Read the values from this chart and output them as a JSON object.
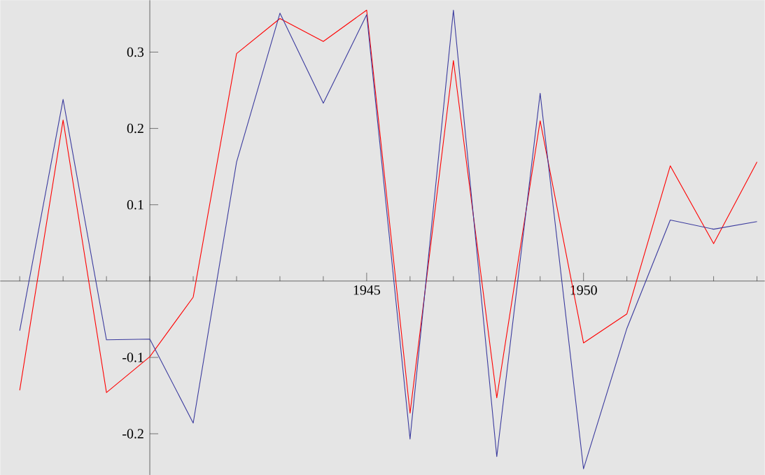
{
  "chart_data": {
    "type": "line",
    "x": [
      1937,
      1938,
      1939,
      1940,
      1941,
      1942,
      1943,
      1944,
      1945,
      1946,
      1947,
      1948,
      1949,
      1950,
      1951,
      1952,
      1953,
      1954
    ],
    "series": [
      {
        "color": "#ff0000",
        "values": [
          -0.143,
          0.211,
          -0.146,
          -0.099,
          -0.021,
          0.298,
          0.344,
          0.314,
          0.355,
          -0.173,
          0.289,
          -0.153,
          0.21,
          -0.081,
          -0.043,
          0.151,
          0.049,
          0.156
        ]
      },
      {
        "color": "#3b3b9e",
        "values": [
          -0.065,
          0.238,
          -0.077,
          -0.076,
          -0.186,
          0.156,
          0.351,
          0.233,
          0.349,
          -0.207,
          0.355,
          -0.23,
          0.246,
          -0.246,
          -0.062,
          0.08,
          0.068,
          0.078
        ]
      }
    ],
    "xlim": [
      1936.55,
      1954.18
    ],
    "ylim": [
      -0.254,
      0.368
    ],
    "xticks": [
      {
        "value": 1937,
        "label": null
      },
      {
        "value": 1938,
        "label": null
      },
      {
        "value": 1939,
        "label": null
      },
      {
        "value": 1940,
        "label": null
      },
      {
        "value": 1941,
        "label": null
      },
      {
        "value": 1942,
        "label": null
      },
      {
        "value": 1943,
        "label": null
      },
      {
        "value": 1944,
        "label": null
      },
      1945,
      {
        "value": 1946,
        "label": null
      },
      {
        "value": 1947,
        "label": null
      },
      {
        "value": 1948,
        "label": null
      },
      {
        "value": 1949,
        "label": null
      },
      1950,
      {
        "value": 1951,
        "label": null
      },
      {
        "value": 1952,
        "label": null
      },
      {
        "value": 1953,
        "label": null
      },
      {
        "value": 1954,
        "label": null
      }
    ],
    "yticks": [
      -0.2,
      -0.1,
      {
        "value": 0,
        "label": null
      },
      0.1,
      0.2,
      0.3
    ]
  }
}
